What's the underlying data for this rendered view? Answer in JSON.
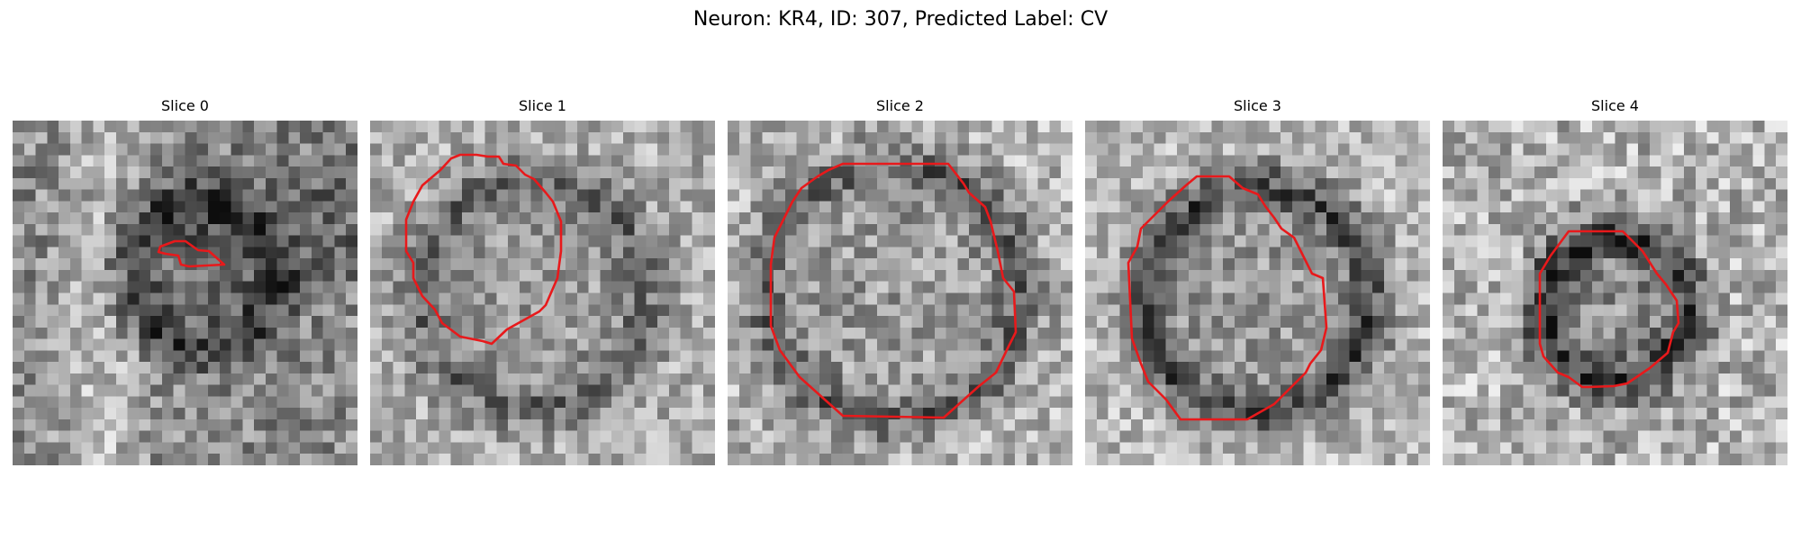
{
  "figure": {
    "title": "Neuron: KR4, ID: 307, Predicted Label: CV"
  },
  "colors": {
    "contour": "#e8191b",
    "background": "#ffffff"
  },
  "panels": [
    {
      "title": "Slice 0"
    },
    {
      "title": "Slice 1"
    },
    {
      "title": "Slice 2"
    },
    {
      "title": "Slice 3"
    },
    {
      "title": "Slice 4"
    }
  ]
}
